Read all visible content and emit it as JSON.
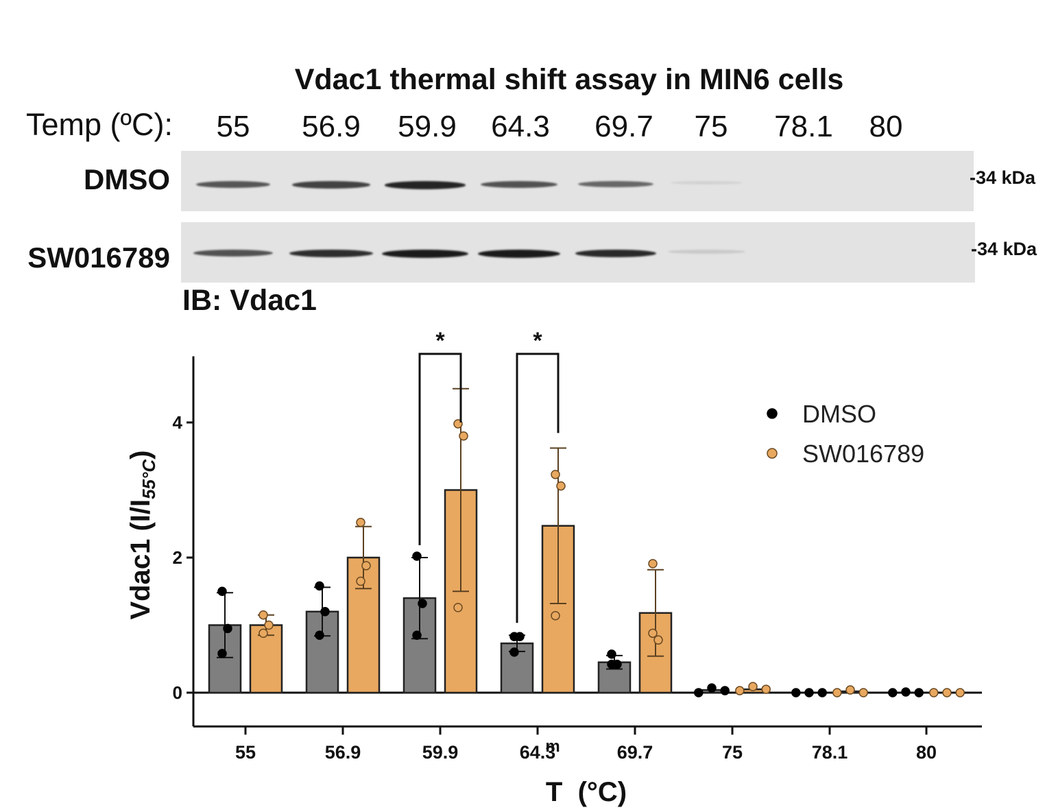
{
  "blot": {
    "title": "Vdac1 thermal shift assay in MIN6 cells",
    "temp_label": "Temp (ºC):",
    "temperatures": [
      "55",
      "56.9",
      "59.9",
      "64.3",
      "69.7",
      "75",
      "78.1",
      "80"
    ],
    "rows": [
      {
        "label": "DMSO",
        "marker": "-34 kDa",
        "band_intensity": [
          0.7,
          0.8,
          0.95,
          0.72,
          0.62,
          0.05,
          0.0,
          0.0
        ]
      },
      {
        "label": "SW016789",
        "marker": "-34 kDa",
        "band_intensity": [
          0.72,
          0.9,
          1.0,
          1.0,
          0.92,
          0.12,
          0.0,
          0.0
        ]
      }
    ],
    "ib_label": "IB: Vdac1"
  },
  "chart_data": {
    "type": "bar",
    "categories": [
      "55",
      "56.9",
      "59.9",
      "64.3",
      "69.7",
      "75",
      "78.1",
      "80"
    ],
    "xlabel": "T  (°C)",
    "ylabel": "Vdac1 (I/I",
    "ylabel_sub": "55°C",
    "ylabel_close": ")",
    "ylim": [
      -0.5,
      5.0
    ],
    "yticks": [
      0,
      2,
      4
    ],
    "legend_position": "top-right",
    "stray_label": "m",
    "series": [
      {
        "name": "DMSO",
        "color": "#7f7f7f",
        "dot_color": "#000000",
        "values": [
          1.0,
          1.2,
          1.4,
          0.73,
          0.45,
          0.04,
          0.0,
          0.0
        ],
        "errors": [
          0.48,
          0.36,
          0.6,
          0.12,
          0.1,
          0.0,
          0.0,
          0.0
        ],
        "points": [
          [
            1.5,
            0.95,
            0.58
          ],
          [
            1.58,
            1.2,
            0.85
          ],
          [
            2.02,
            1.32,
            0.85
          ],
          [
            0.83,
            0.83,
            0.6
          ],
          [
            0.57,
            0.42,
            0.42
          ],
          [
            0.0,
            0.07,
            0.03
          ],
          [
            0.0,
            0.0,
            0.0
          ],
          [
            0.0,
            0.01,
            0.0
          ]
        ]
      },
      {
        "name": "SW016789",
        "color": "#e8a860",
        "dot_color": "#e8a860",
        "values": [
          1.0,
          2.0,
          3.0,
          2.47,
          1.18,
          0.05,
          0.02,
          0.0
        ],
        "errors": [
          0.15,
          0.46,
          1.5,
          1.15,
          0.64,
          0.0,
          0.0,
          0.0
        ],
        "points": [
          [
            1.15,
            1.0,
            0.88
          ],
          [
            2.52,
            1.88,
            1.65
          ],
          [
            3.98,
            3.8,
            1.26
          ],
          [
            3.23,
            3.06,
            1.14
          ],
          [
            1.91,
            0.78,
            0.88
          ],
          [
            0.03,
            0.09,
            0.05
          ],
          [
            0.0,
            0.04,
            0.0
          ],
          [
            0.0,
            0.0,
            0.0
          ]
        ]
      }
    ],
    "significance": [
      {
        "category": "59.9",
        "label": "*"
      },
      {
        "category": "64.3",
        "label": "*"
      }
    ]
  }
}
